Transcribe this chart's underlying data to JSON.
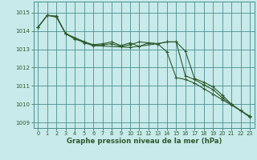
{
  "title": "Graphe pression niveau de la mer (hPa)",
  "background_color": "#c8eaea",
  "grid_color": "#4a9090",
  "line_color": "#2d5a2d",
  "marker_color": "#2d5a2d",
  "xlim": [
    -0.5,
    23.5
  ],
  "ylim": [
    1008.7,
    1015.6
  ],
  "yticks": [
    1009,
    1010,
    1011,
    1012,
    1013,
    1014,
    1015
  ],
  "xticks": [
    0,
    1,
    2,
    3,
    4,
    5,
    6,
    7,
    8,
    9,
    10,
    11,
    12,
    13,
    14,
    15,
    16,
    17,
    18,
    19,
    20,
    21,
    22,
    23
  ],
  "series1_x": [
    0,
    1,
    2,
    3,
    4,
    5,
    6,
    7,
    8,
    9,
    10,
    11,
    12,
    13,
    14,
    15,
    16,
    17,
    18,
    19,
    20,
    21,
    22,
    23
  ],
  "series1_y": [
    1014.2,
    1014.85,
    1014.8,
    1013.85,
    1013.6,
    1013.35,
    1013.2,
    1013.25,
    1013.3,
    1013.15,
    1013.25,
    1013.4,
    1013.35,
    1013.3,
    1013.4,
    1013.4,
    1012.9,
    1011.4,
    1011.2,
    1010.95,
    1010.5,
    1010.0,
    1009.65,
    1009.35
  ],
  "series2_x": [
    0,
    1,
    2,
    3,
    4,
    5,
    6,
    7,
    8,
    9,
    10,
    11,
    12,
    13,
    14,
    15,
    16,
    17,
    18,
    19,
    20,
    21,
    22,
    23
  ],
  "series2_y": [
    1014.2,
    1014.85,
    1014.8,
    1013.85,
    1013.55,
    1013.4,
    1013.25,
    1013.3,
    1013.4,
    1013.2,
    1013.35,
    1013.15,
    1013.35,
    1013.3,
    1013.4,
    1013.4,
    1011.55,
    1011.35,
    1011.05,
    1010.8,
    1010.35,
    1010.0,
    1009.65,
    1009.3
  ],
  "series3_x": [
    0,
    1,
    2,
    3,
    6,
    10,
    13,
    14,
    15,
    16,
    17,
    18,
    19,
    20,
    21,
    22,
    23
  ],
  "series3_y": [
    1014.2,
    1014.85,
    1014.75,
    1013.85,
    1013.2,
    1013.1,
    1013.3,
    1012.85,
    1011.45,
    1011.35,
    1011.15,
    1010.85,
    1010.55,
    1010.25,
    1009.95,
    1009.65,
    1009.3
  ]
}
